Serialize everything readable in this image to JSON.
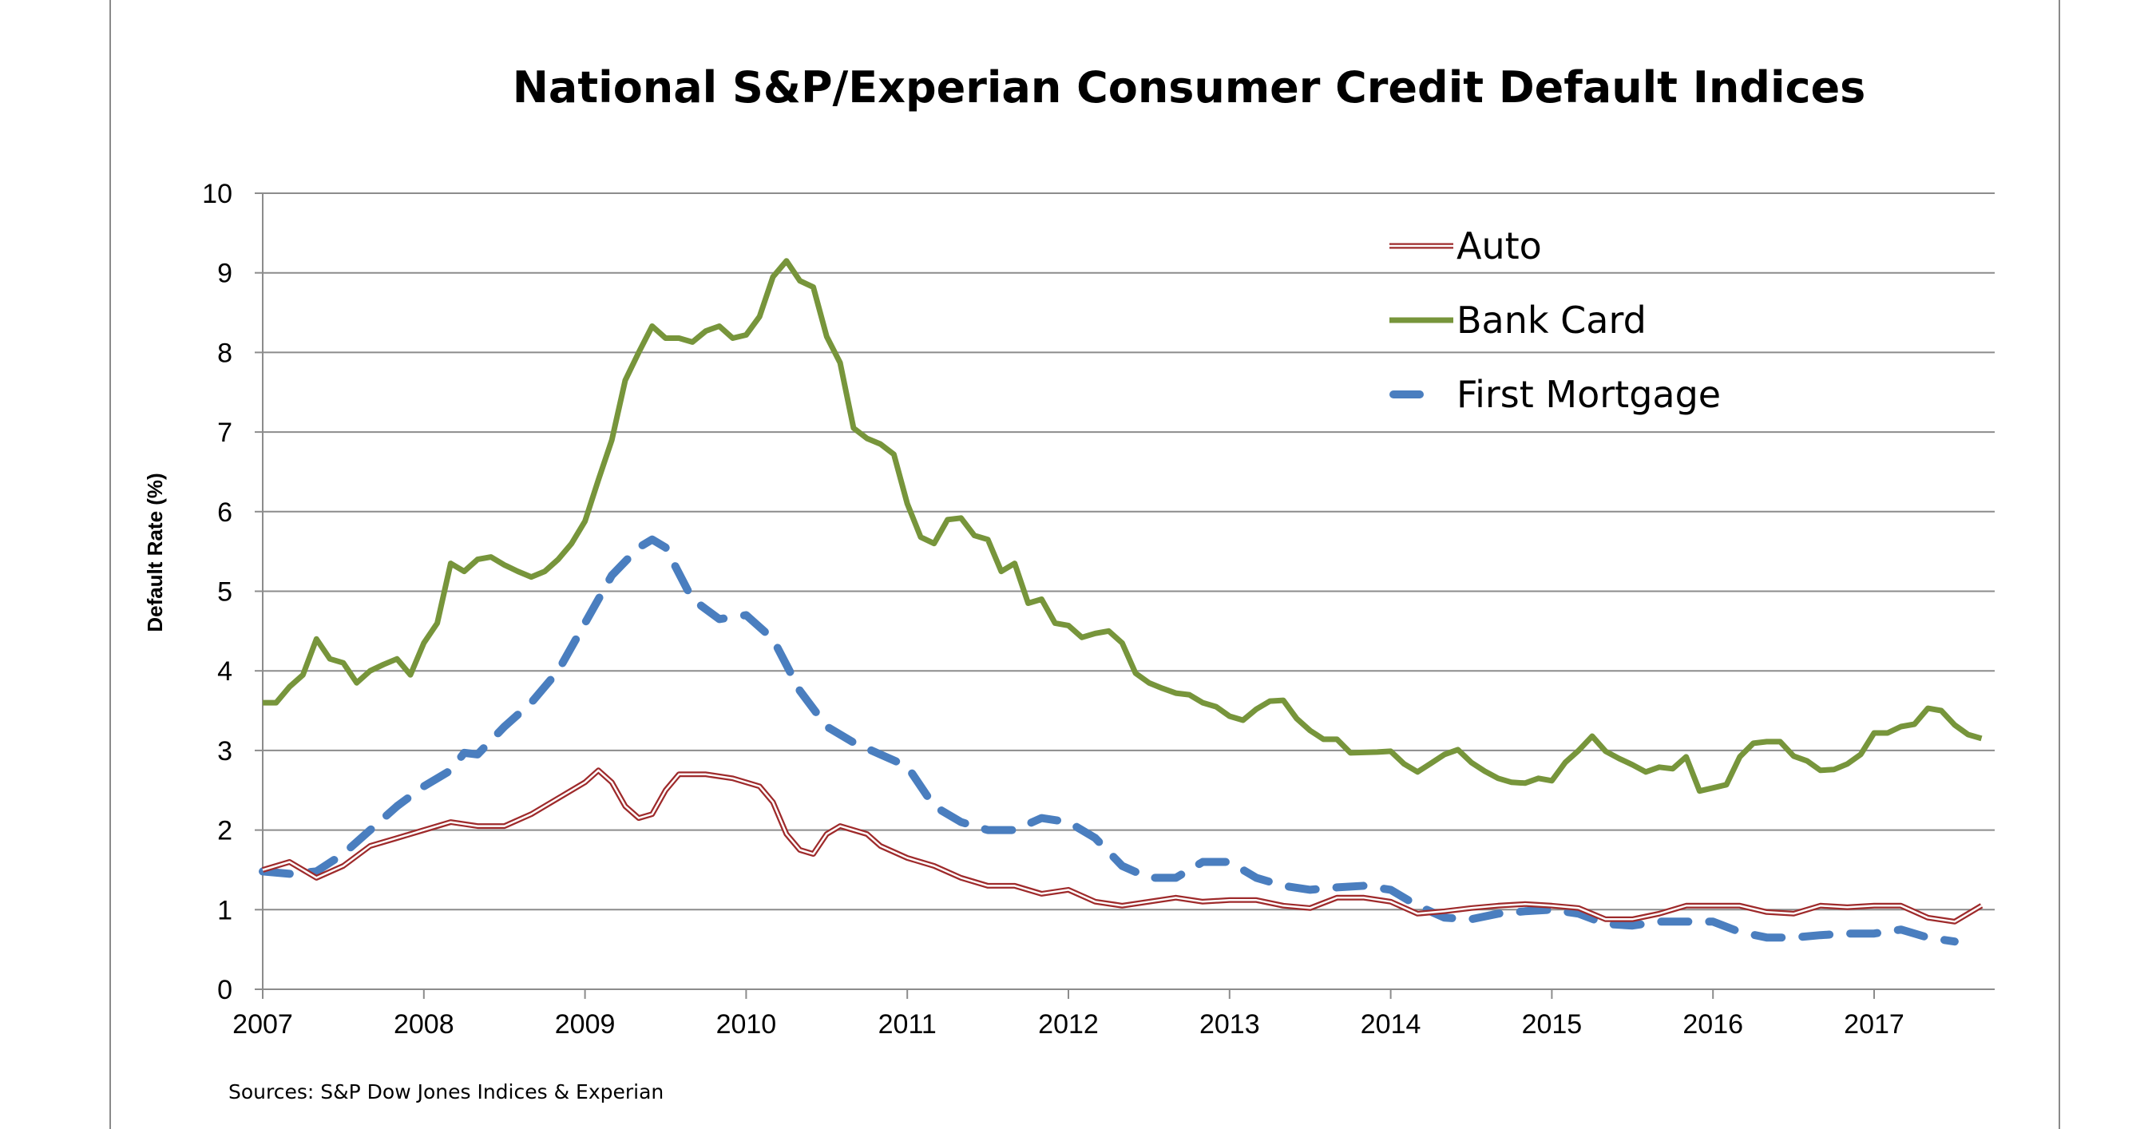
{
  "chart_data": {
    "type": "line",
    "title": "National S&P/Experian Consumer Credit Default Indices",
    "ylabel": "Default Rate (%)",
    "xlabel": "",
    "source": "Sources: S&P Dow Jones Indices & Experian",
    "ylim": [
      0,
      10
    ],
    "yticks": [
      "0",
      "1",
      "2",
      "3",
      "4",
      "5",
      "6",
      "7",
      "8",
      "9",
      "10"
    ],
    "xticks": [
      "2007",
      "2008",
      "2009",
      "2010",
      "2011",
      "2012",
      "2013",
      "2014",
      "2015",
      "2016",
      "2017"
    ],
    "grid": true,
    "legend_position": "top-right",
    "series": [
      {
        "name": "Auto",
        "color": "#9e2a2b",
        "style": "double",
        "points": [
          [
            "2007-01",
            1.5
          ],
          [
            "2007-03",
            1.6
          ],
          [
            "2007-05",
            1.4
          ],
          [
            "2007-07",
            1.55
          ],
          [
            "2007-09",
            1.8
          ],
          [
            "2007-11",
            1.9
          ],
          [
            "2008-01",
            2.0
          ],
          [
            "2008-03",
            2.1
          ],
          [
            "2008-05",
            2.05
          ],
          [
            "2008-07",
            2.05
          ],
          [
            "2008-09",
            2.2
          ],
          [
            "2008-11",
            2.4
          ],
          [
            "2009-01",
            2.6
          ],
          [
            "2009-02",
            2.75
          ],
          [
            "2009-03",
            2.6
          ],
          [
            "2009-04",
            2.3
          ],
          [
            "2009-05",
            2.15
          ],
          [
            "2009-06",
            2.2
          ],
          [
            "2009-07",
            2.5
          ],
          [
            "2009-08",
            2.7
          ],
          [
            "2009-10",
            2.7
          ],
          [
            "2009-12",
            2.65
          ],
          [
            "2010-02",
            2.55
          ],
          [
            "2010-03",
            2.35
          ],
          [
            "2010-04",
            1.95
          ],
          [
            "2010-05",
            1.75
          ],
          [
            "2010-06",
            1.7
          ],
          [
            "2010-07",
            1.95
          ],
          [
            "2010-08",
            2.05
          ],
          [
            "2010-10",
            1.95
          ],
          [
            "2010-11",
            1.8
          ],
          [
            "2011-01",
            1.65
          ],
          [
            "2011-03",
            1.55
          ],
          [
            "2011-05",
            1.4
          ],
          [
            "2011-07",
            1.3
          ],
          [
            "2011-09",
            1.3
          ],
          [
            "2011-11",
            1.2
          ],
          [
            "2012-01",
            1.25
          ],
          [
            "2012-03",
            1.1
          ],
          [
            "2012-05",
            1.05
          ],
          [
            "2012-07",
            1.1
          ],
          [
            "2012-09",
            1.15
          ],
          [
            "2012-11",
            1.1
          ],
          [
            "2013-01",
            1.12
          ],
          [
            "2013-03",
            1.12
          ],
          [
            "2013-05",
            1.05
          ],
          [
            "2013-07",
            1.02
          ],
          [
            "2013-09",
            1.15
          ],
          [
            "2013-11",
            1.15
          ],
          [
            "2014-01",
            1.1
          ],
          [
            "2014-03",
            0.95
          ],
          [
            "2014-05",
            0.98
          ],
          [
            "2014-07",
            1.02
          ],
          [
            "2014-09",
            1.05
          ],
          [
            "2014-11",
            1.07
          ],
          [
            "2015-01",
            1.05
          ],
          [
            "2015-03",
            1.02
          ],
          [
            "2015-05",
            0.88
          ],
          [
            "2015-07",
            0.88
          ],
          [
            "2015-09",
            0.95
          ],
          [
            "2015-11",
            1.05
          ],
          [
            "2016-01",
            1.05
          ],
          [
            "2016-03",
            1.05
          ],
          [
            "2016-05",
            0.97
          ],
          [
            "2016-07",
            0.95
          ],
          [
            "2016-09",
            1.05
          ],
          [
            "2016-11",
            1.03
          ],
          [
            "2017-01",
            1.05
          ],
          [
            "2017-03",
            1.05
          ],
          [
            "2017-05",
            0.9
          ],
          [
            "2017-07",
            0.85
          ],
          [
            "2017-09",
            1.05
          ]
        ]
      },
      {
        "name": "Bank Card",
        "color": "#77953b",
        "style": "solid",
        "points": [
          [
            "2007-01",
            3.6
          ],
          [
            "2007-02",
            3.6
          ],
          [
            "2007-03",
            3.8
          ],
          [
            "2007-04",
            3.95
          ],
          [
            "2007-05",
            4.4
          ],
          [
            "2007-06",
            4.15
          ],
          [
            "2007-07",
            4.1
          ],
          [
            "2007-08",
            3.85
          ],
          [
            "2007-09",
            4.0
          ],
          [
            "2007-10",
            4.08
          ],
          [
            "2007-11",
            4.15
          ],
          [
            "2007-12",
            3.95
          ],
          [
            "2008-01",
            4.35
          ],
          [
            "2008-02",
            4.6
          ],
          [
            "2008-03",
            5.35
          ],
          [
            "2008-04",
            5.25
          ],
          [
            "2008-05",
            5.4
          ],
          [
            "2008-06",
            5.43
          ],
          [
            "2008-07",
            5.33
          ],
          [
            "2008-08",
            5.25
          ],
          [
            "2008-09",
            5.18
          ],
          [
            "2008-10",
            5.25
          ],
          [
            "2008-11",
            5.4
          ],
          [
            "2008-12",
            5.6
          ],
          [
            "2009-01",
            5.88
          ],
          [
            "2009-02",
            6.4
          ],
          [
            "2009-03",
            6.9
          ],
          [
            "2009-04",
            7.65
          ],
          [
            "2009-05",
            8.0
          ],
          [
            "2009-06",
            8.33
          ],
          [
            "2009-07",
            8.18
          ],
          [
            "2009-08",
            8.18
          ],
          [
            "2009-09",
            8.13
          ],
          [
            "2009-10",
            8.27
          ],
          [
            "2009-11",
            8.33
          ],
          [
            "2009-12",
            8.18
          ],
          [
            "2010-01",
            8.22
          ],
          [
            "2010-02",
            8.45
          ],
          [
            "2010-03",
            8.95
          ],
          [
            "2010-04",
            9.15
          ],
          [
            "2010-05",
            8.9
          ],
          [
            "2010-06",
            8.82
          ],
          [
            "2010-07",
            8.2
          ],
          [
            "2010-08",
            7.87
          ],
          [
            "2010-09",
            7.05
          ],
          [
            "2010-10",
            6.92
          ],
          [
            "2010-11",
            6.85
          ],
          [
            "2010-12",
            6.72
          ],
          [
            "2011-01",
            6.1
          ],
          [
            "2011-02",
            5.68
          ],
          [
            "2011-03",
            5.6
          ],
          [
            "2011-04",
            5.9
          ],
          [
            "2011-05",
            5.92
          ],
          [
            "2011-06",
            5.7
          ],
          [
            "2011-07",
            5.65
          ],
          [
            "2011-08",
            5.25
          ],
          [
            "2011-09",
            5.35
          ],
          [
            "2011-10",
            4.85
          ],
          [
            "2011-11",
            4.9
          ],
          [
            "2011-12",
            4.6
          ],
          [
            "2012-01",
            4.57
          ],
          [
            "2012-02",
            4.42
          ],
          [
            "2012-03",
            4.47
          ],
          [
            "2012-04",
            4.5
          ],
          [
            "2012-05",
            4.35
          ],
          [
            "2012-06",
            3.97
          ],
          [
            "2012-07",
            3.85
          ],
          [
            "2012-08",
            3.78
          ],
          [
            "2012-09",
            3.72
          ],
          [
            "2012-10",
            3.7
          ],
          [
            "2012-11",
            3.6
          ],
          [
            "2012-12",
            3.55
          ],
          [
            "2013-01",
            3.43
          ],
          [
            "2013-02",
            3.38
          ],
          [
            "2013-03",
            3.52
          ],
          [
            "2013-04",
            3.62
          ],
          [
            "2013-05",
            3.63
          ],
          [
            "2013-06",
            3.4
          ],
          [
            "2013-07",
            3.25
          ],
          [
            "2013-08",
            3.14
          ],
          [
            "2013-09",
            3.14
          ],
          [
            "2013-10",
            2.97
          ],
          [
            "2013-12",
            2.98
          ],
          [
            "2014-01",
            2.99
          ],
          [
            "2014-02",
            2.83
          ],
          [
            "2014-03",
            2.73
          ],
          [
            "2014-04",
            2.84
          ],
          [
            "2014-05",
            2.95
          ],
          [
            "2014-06",
            3.01
          ],
          [
            "2014-07",
            2.85
          ],
          [
            "2014-08",
            2.74
          ],
          [
            "2014-09",
            2.65
          ],
          [
            "2014-10",
            2.6
          ],
          [
            "2014-11",
            2.59
          ],
          [
            "2014-12",
            2.65
          ],
          [
            "2015-01",
            2.62
          ],
          [
            "2015-02",
            2.85
          ],
          [
            "2015-03",
            3.0
          ],
          [
            "2015-04",
            3.18
          ],
          [
            "2015-05",
            2.99
          ],
          [
            "2015-06",
            2.9
          ],
          [
            "2015-07",
            2.82
          ],
          [
            "2015-08",
            2.73
          ],
          [
            "2015-09",
            2.79
          ],
          [
            "2015-10",
            2.77
          ],
          [
            "2015-11",
            2.92
          ],
          [
            "2015-12",
            2.49
          ],
          [
            "2016-01",
            2.53
          ],
          [
            "2016-02",
            2.57
          ],
          [
            "2016-03",
            2.92
          ],
          [
            "2016-04",
            3.09
          ],
          [
            "2016-05",
            3.11
          ],
          [
            "2016-06",
            3.11
          ],
          [
            "2016-07",
            2.93
          ],
          [
            "2016-08",
            2.87
          ],
          [
            "2016-09",
            2.75
          ],
          [
            "2016-10",
            2.76
          ],
          [
            "2016-11",
            2.83
          ],
          [
            "2016-12",
            2.95
          ],
          [
            "2017-01",
            3.22
          ],
          [
            "2017-02",
            3.22
          ],
          [
            "2017-03",
            3.3
          ],
          [
            "2017-04",
            3.33
          ],
          [
            "2017-05",
            3.53
          ],
          [
            "2017-06",
            3.5
          ],
          [
            "2017-07",
            3.32
          ],
          [
            "2017-08",
            3.2
          ],
          [
            "2017-09",
            3.15
          ]
        ]
      },
      {
        "name": "First Mortgage",
        "color": "#4a7ebf",
        "style": "dashed",
        "points": [
          [
            "2007-01",
            1.48
          ],
          [
            "2007-03",
            1.45
          ],
          [
            "2007-05",
            1.48
          ],
          [
            "2007-07",
            1.7
          ],
          [
            "2007-09",
            2.0
          ],
          [
            "2007-11",
            2.3
          ],
          [
            "2008-01",
            2.55
          ],
          [
            "2008-03",
            2.75
          ],
          [
            "2008-04",
            2.97
          ],
          [
            "2008-05",
            2.95
          ],
          [
            "2008-07",
            3.3
          ],
          [
            "2008-09",
            3.6
          ],
          [
            "2008-11",
            4.0
          ],
          [
            "2009-01",
            4.6
          ],
          [
            "2009-03",
            5.2
          ],
          [
            "2009-05",
            5.55
          ],
          [
            "2009-06",
            5.65
          ],
          [
            "2009-07",
            5.55
          ],
          [
            "2009-09",
            4.9
          ],
          [
            "2009-11",
            4.65
          ],
          [
            "2010-01",
            4.7
          ],
          [
            "2010-03",
            4.4
          ],
          [
            "2010-05",
            3.75
          ],
          [
            "2010-07",
            3.3
          ],
          [
            "2010-09",
            3.1
          ],
          [
            "2010-11",
            2.95
          ],
          [
            "2011-01",
            2.8
          ],
          [
            "2011-03",
            2.3
          ],
          [
            "2011-05",
            2.1
          ],
          [
            "2011-07",
            2.0
          ],
          [
            "2011-09",
            2.0
          ],
          [
            "2011-11",
            2.15
          ],
          [
            "2012-01",
            2.1
          ],
          [
            "2012-03",
            1.9
          ],
          [
            "2012-05",
            1.55
          ],
          [
            "2012-07",
            1.4
          ],
          [
            "2012-09",
            1.4
          ],
          [
            "2012-11",
            1.6
          ],
          [
            "2013-01",
            1.6
          ],
          [
            "2013-03",
            1.4
          ],
          [
            "2013-05",
            1.3
          ],
          [
            "2013-07",
            1.25
          ],
          [
            "2013-09",
            1.28
          ],
          [
            "2013-11",
            1.3
          ],
          [
            "2014-01",
            1.25
          ],
          [
            "2014-03",
            1.05
          ],
          [
            "2014-05",
            0.9
          ],
          [
            "2014-07",
            0.88
          ],
          [
            "2014-09",
            0.95
          ],
          [
            "2014-11",
            0.98
          ],
          [
            "2015-01",
            1.0
          ],
          [
            "2015-03",
            0.95
          ],
          [
            "2015-05",
            0.82
          ],
          [
            "2015-07",
            0.8
          ],
          [
            "2015-09",
            0.85
          ],
          [
            "2015-11",
            0.85
          ],
          [
            "2016-01",
            0.85
          ],
          [
            "2016-03",
            0.72
          ],
          [
            "2016-05",
            0.65
          ],
          [
            "2016-07",
            0.65
          ],
          [
            "2016-09",
            0.68
          ],
          [
            "2016-11",
            0.7
          ],
          [
            "2017-01",
            0.7
          ],
          [
            "2017-03",
            0.75
          ],
          [
            "2017-05",
            0.65
          ],
          [
            "2017-07",
            0.6
          ]
        ]
      }
    ]
  }
}
